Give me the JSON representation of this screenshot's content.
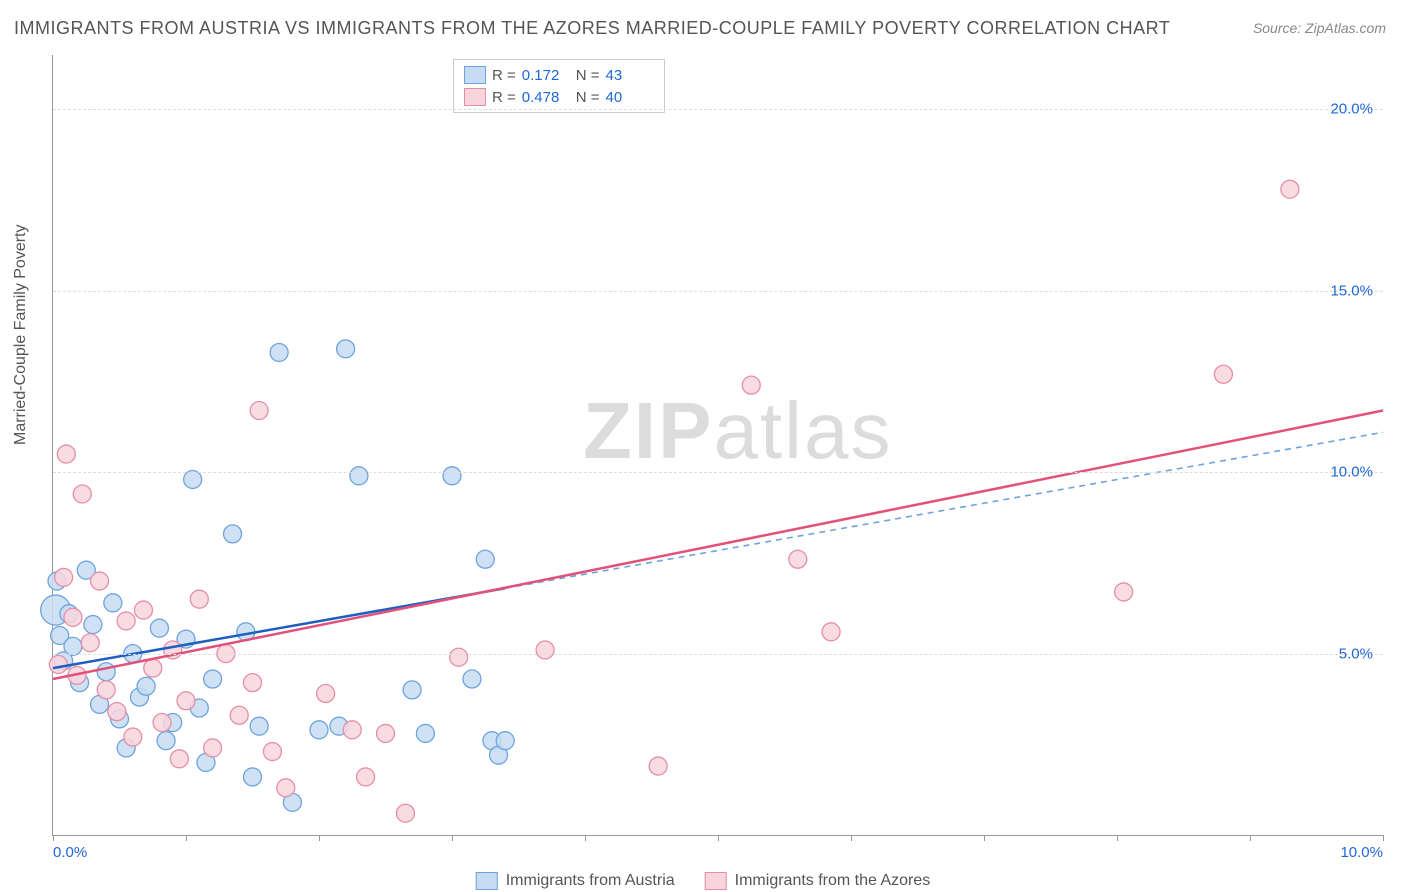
{
  "title": "IMMIGRANTS FROM AUSTRIA VS IMMIGRANTS FROM THE AZORES MARRIED-COUPLE FAMILY POVERTY CORRELATION CHART",
  "source": "Source: ZipAtlas.com",
  "watermark_bold": "ZIP",
  "watermark_light": "atlas",
  "y_axis_label": "Married-Couple Family Poverty",
  "chart": {
    "type": "scatter",
    "xlim": [
      0.0,
      10.0
    ],
    "ylim": [
      0.0,
      21.5
    ],
    "x_ticks": [
      0.0,
      1.0,
      2.0,
      3.0,
      4.0,
      5.0,
      6.0,
      7.0,
      8.0,
      9.0,
      10.0
    ],
    "x_tick_labels_shown": {
      "0": "0.0%",
      "10": "10.0%"
    },
    "y_grid": [
      5.0,
      10.0,
      15.0,
      20.0
    ],
    "y_tick_labels": [
      "5.0%",
      "10.0%",
      "15.0%",
      "20.0%"
    ],
    "background_color": "#ffffff",
    "grid_color": "#dddddd",
    "axis_color": "#999999",
    "tick_label_color": "#2068d8",
    "series": [
      {
        "name": "Immigrants from Austria",
        "marker_fill": "#c6dcf3",
        "marker_stroke": "#6fa3dd",
        "marker_radius": 9,
        "line_color": "#1f5fbf",
        "line_dash_color": "#6fa3dd",
        "r_value": "0.172",
        "n_value": "43",
        "trend": {
          "x1": 0.0,
          "y1": 4.6,
          "x2": 3.4,
          "y2": 6.8,
          "ext_x2": 10.0,
          "ext_y2": 11.1
        },
        "points": [
          [
            0.02,
            6.2,
            15
          ],
          [
            0.03,
            7.0
          ],
          [
            0.05,
            5.5
          ],
          [
            0.08,
            4.8
          ],
          [
            0.12,
            6.1
          ],
          [
            0.15,
            5.2
          ],
          [
            0.2,
            4.2
          ],
          [
            0.25,
            7.3
          ],
          [
            0.3,
            5.8
          ],
          [
            0.35,
            3.6
          ],
          [
            0.4,
            4.5
          ],
          [
            0.45,
            6.4
          ],
          [
            0.5,
            3.2
          ],
          [
            0.55,
            2.4
          ],
          [
            0.6,
            5.0
          ],
          [
            0.65,
            3.8
          ],
          [
            0.7,
            4.1
          ],
          [
            0.8,
            5.7
          ],
          [
            0.85,
            2.6
          ],
          [
            0.9,
            3.1
          ],
          [
            1.0,
            5.4
          ],
          [
            1.05,
            9.8
          ],
          [
            1.1,
            3.5
          ],
          [
            1.15,
            2.0
          ],
          [
            1.2,
            4.3
          ],
          [
            1.35,
            8.3
          ],
          [
            1.45,
            5.6
          ],
          [
            1.5,
            1.6
          ],
          [
            1.55,
            3.0
          ],
          [
            1.7,
            13.3
          ],
          [
            1.8,
            0.9
          ],
          [
            2.0,
            2.9
          ],
          [
            2.15,
            3.0
          ],
          [
            2.2,
            13.4
          ],
          [
            2.3,
            9.9
          ],
          [
            2.7,
            4.0
          ],
          [
            2.8,
            2.8
          ],
          [
            3.0,
            9.9
          ],
          [
            3.15,
            4.3
          ],
          [
            3.25,
            7.6
          ],
          [
            3.3,
            2.6
          ],
          [
            3.35,
            2.2
          ],
          [
            3.4,
            2.6
          ]
        ]
      },
      {
        "name": "Immigrants from the Azores",
        "marker_fill": "#f8d5de",
        "marker_stroke": "#e58fa5",
        "marker_radius": 9,
        "line_color": "#e3517a",
        "line_dash_color": "#f0a3b8",
        "r_value": "0.478",
        "n_value": "40",
        "trend": {
          "x1": 0.0,
          "y1": 4.3,
          "x2": 10.0,
          "y2": 11.7,
          "ext_x2": 10.0,
          "ext_y2": 11.7
        },
        "points": [
          [
            0.04,
            4.7
          ],
          [
            0.08,
            7.1
          ],
          [
            0.1,
            10.5
          ],
          [
            0.15,
            6.0
          ],
          [
            0.18,
            4.4
          ],
          [
            0.22,
            9.4
          ],
          [
            0.28,
            5.3
          ],
          [
            0.35,
            7.0
          ],
          [
            0.4,
            4.0
          ],
          [
            0.48,
            3.4
          ],
          [
            0.55,
            5.9
          ],
          [
            0.6,
            2.7
          ],
          [
            0.68,
            6.2
          ],
          [
            0.75,
            4.6
          ],
          [
            0.82,
            3.1
          ],
          [
            0.9,
            5.1
          ],
          [
            0.95,
            2.1
          ],
          [
            1.0,
            3.7
          ],
          [
            1.1,
            6.5
          ],
          [
            1.2,
            2.4
          ],
          [
            1.3,
            5.0
          ],
          [
            1.4,
            3.3
          ],
          [
            1.5,
            4.2
          ],
          [
            1.55,
            11.7
          ],
          [
            1.65,
            2.3
          ],
          [
            1.75,
            1.3
          ],
          [
            2.05,
            3.9
          ],
          [
            2.25,
            2.9
          ],
          [
            2.35,
            1.6
          ],
          [
            2.5,
            2.8
          ],
          [
            2.65,
            0.6
          ],
          [
            3.05,
            4.9
          ],
          [
            3.7,
            5.1
          ],
          [
            4.55,
            1.9
          ],
          [
            5.25,
            12.4
          ],
          [
            5.6,
            7.6
          ],
          [
            5.85,
            5.6
          ],
          [
            8.05,
            6.7
          ],
          [
            8.8,
            12.7
          ],
          [
            9.3,
            17.8
          ]
        ]
      }
    ],
    "legend_top": {
      "r_label": "R =",
      "n_label": "N ="
    },
    "legend_bottom_labels": [
      "Immigrants from Austria",
      "Immigrants from the Azores"
    ]
  }
}
